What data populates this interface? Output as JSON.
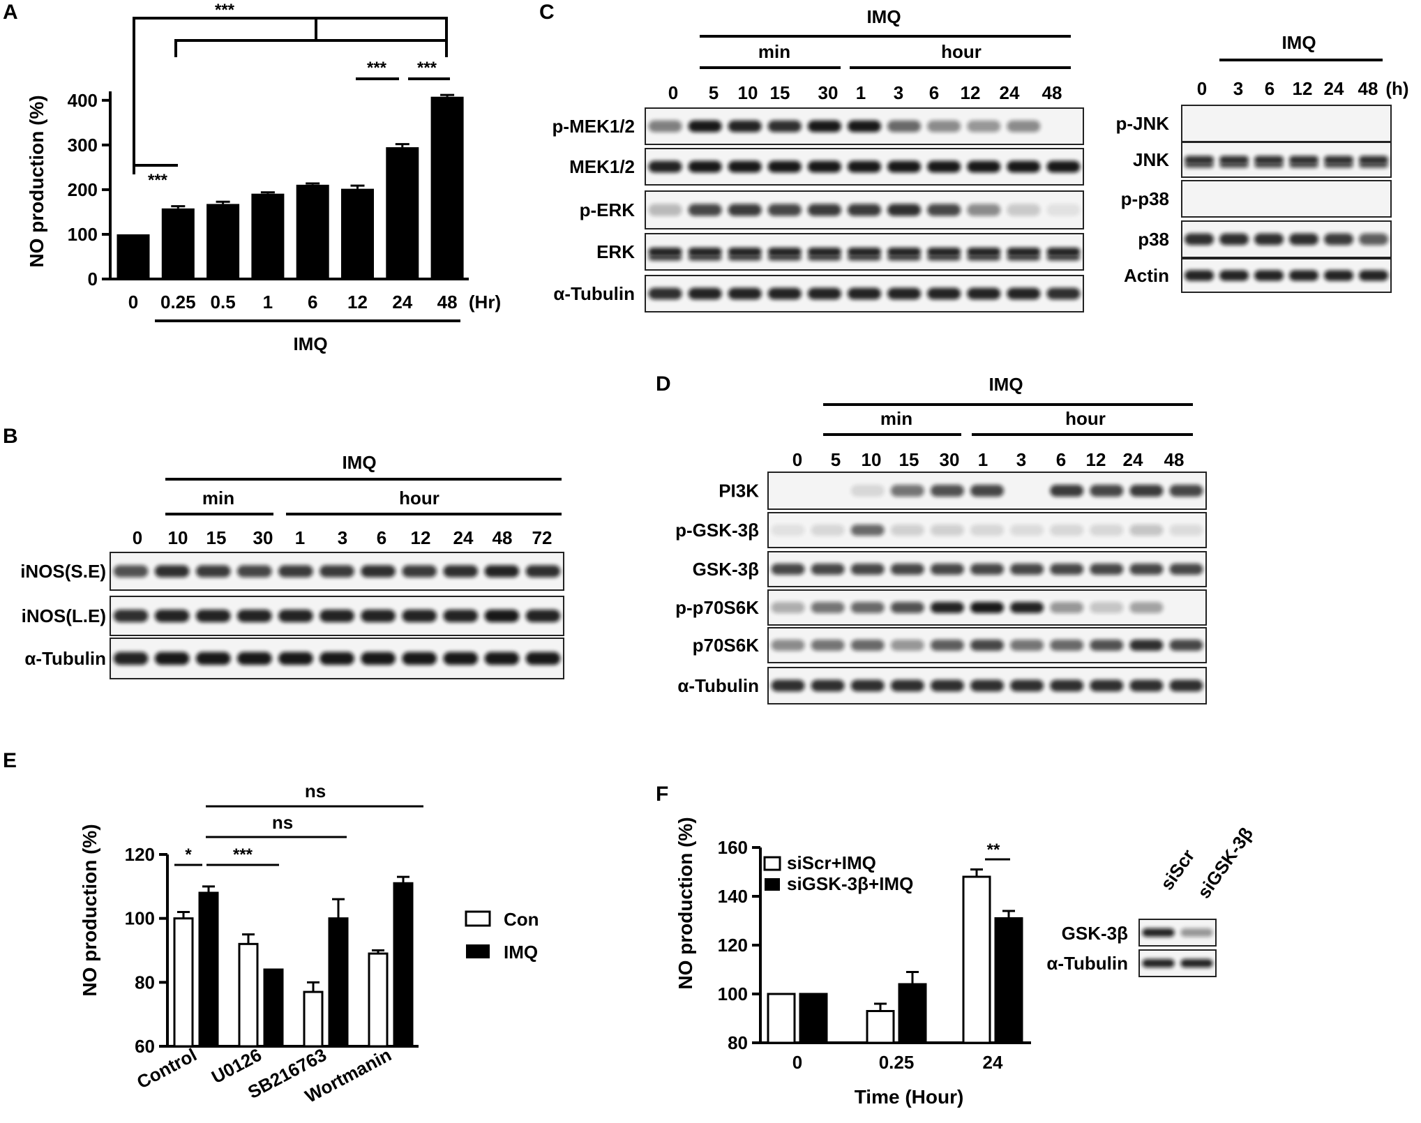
{
  "panels": {
    "A": {
      "letter": "A",
      "ylabel": "NO production (%)",
      "yticks": [
        "0",
        "100",
        "200",
        "300",
        "400"
      ],
      "xticks": [
        "0",
        "0.25",
        "0.5",
        "1",
        "6",
        "12",
        "24",
        "48"
      ],
      "xunit": "(Hr)",
      "group_label": "IMQ",
      "sig": [
        "***",
        "***",
        "***",
        "***"
      ]
    },
    "B": {
      "letter": "B",
      "imq": "IMQ",
      "min": "min",
      "hour": "hour",
      "lanes": [
        "0",
        "10",
        "15",
        "30",
        "1",
        "3",
        "6",
        "12",
        "24",
        "48",
        "72"
      ],
      "rows": [
        "iNOS(S.E)",
        "iNOS(L.E)",
        "α-Tubulin"
      ]
    },
    "C": {
      "letter": "C",
      "imq": "IMQ",
      "min": "min",
      "hour": "hour",
      "lanes": [
        "0",
        "5",
        "10",
        "15",
        "30",
        "1",
        "3",
        "6",
        "12",
        "24",
        "48"
      ],
      "rows": [
        "p-MEK1/2",
        "MEK1/2",
        "p-ERK",
        "ERK",
        "α-Tubulin"
      ],
      "right": {
        "imq": "IMQ",
        "lanes": [
          "0",
          "3",
          "6",
          "12",
          "24",
          "48"
        ],
        "unit": "(h)",
        "rows": [
          "p-JNK",
          "JNK",
          "p-p38",
          "p38",
          "Actin"
        ]
      }
    },
    "D": {
      "letter": "D",
      "imq": "IMQ",
      "min": "min",
      "hour": "hour",
      "lanes": [
        "0",
        "5",
        "10",
        "15",
        "30",
        "1",
        "3",
        "6",
        "12",
        "24",
        "48"
      ],
      "rows": [
        "PI3K",
        "p-GSK-3β",
        "GSK-3β",
        "p-p70S6K",
        "p70S6K",
        "α-Tubulin"
      ]
    },
    "E": {
      "letter": "E",
      "ylabel": "NO production (%)",
      "yticks": [
        "60",
        "80",
        "100",
        "120"
      ],
      "categories": [
        "Control",
        "U0126",
        "SB216763",
        "Wortmanin"
      ],
      "legend": [
        "Con",
        "IMQ"
      ],
      "sig": [
        "ns",
        "ns",
        "*",
        "***"
      ]
    },
    "F": {
      "letter": "F",
      "ylabel": "NO production (%)",
      "yticks": [
        "80",
        "100",
        "120",
        "140",
        "160"
      ],
      "xticks": [
        "0",
        "0.25",
        "24"
      ],
      "xlabel": "Time (Hour)",
      "legend": [
        "siScr+IMQ",
        "siGSK-3β+IMQ"
      ],
      "sig": "**",
      "blot": {
        "lanes": [
          "siScr",
          "siGSK-3β"
        ],
        "rows": [
          "GSK-3β",
          "α-Tubulin"
        ]
      }
    }
  },
  "chart_data": [
    {
      "type": "bar",
      "panel": "A",
      "categories": [
        "0",
        "0.25",
        "0.5",
        "1",
        "6",
        "12",
        "24",
        "48"
      ],
      "values": [
        100,
        158,
        168,
        191,
        211,
        202,
        295,
        408
      ],
      "errors": [
        0,
        5,
        5,
        3,
        3,
        7,
        7,
        4
      ],
      "xlabel": "(Hr)",
      "ylabel": "NO production (%)",
      "ylim": [
        0,
        420
      ]
    },
    {
      "type": "bar",
      "panel": "E",
      "categories": [
        "Control",
        "U0126",
        "SB216763",
        "Wortmanin"
      ],
      "series": [
        {
          "name": "Con",
          "values": [
            100,
            92,
            77,
            89
          ],
          "errors": [
            2,
            3,
            3,
            1
          ],
          "color": "#ffffff"
        },
        {
          "name": "IMQ",
          "values": [
            108,
            84,
            100,
            111
          ],
          "errors": [
            2,
            0,
            6,
            2
          ],
          "color": "#000000"
        }
      ],
      "ylabel": "NO production (%)",
      "ylim": [
        60,
        120
      ]
    },
    {
      "type": "bar",
      "panel": "F",
      "categories": [
        "0",
        "0.25",
        "24"
      ],
      "series": [
        {
          "name": "siScr+IMQ",
          "values": [
            100,
            93,
            148
          ],
          "errors": [
            0,
            3,
            3
          ],
          "color": "#ffffff"
        },
        {
          "name": "siGSK-3β+IMQ",
          "values": [
            100,
            104,
            131
          ],
          "errors": [
            0,
            5,
            3
          ],
          "color": "#000000"
        }
      ],
      "xlabel": "Time (Hour)",
      "ylabel": "NO production (%)",
      "ylim": [
        80,
        160
      ]
    }
  ]
}
